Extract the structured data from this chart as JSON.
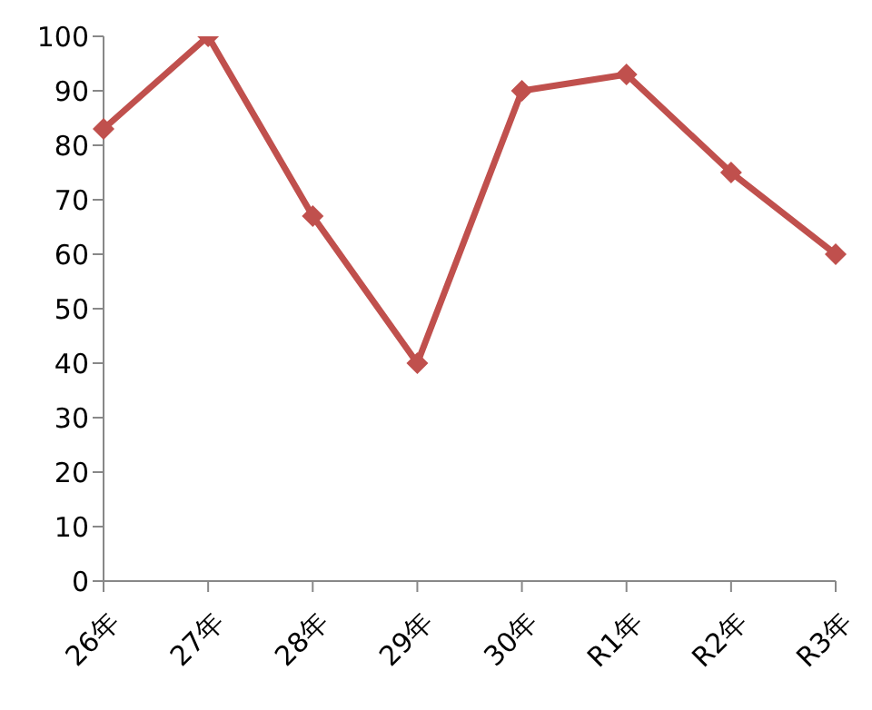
{
  "chart_data": {
    "type": "line",
    "categories": [
      "26年",
      "27年",
      "28年",
      "29年",
      "30年",
      "R1年",
      "R2年",
      "R3年"
    ],
    "series": [
      {
        "color": "#c0504d",
        "values": [
          83,
          100,
          67,
          40,
          90,
          93,
          75,
          60
        ]
      }
    ],
    "ylim": [
      0,
      100
    ],
    "yticks": [
      0,
      10,
      20,
      30,
      40,
      50,
      60,
      70,
      80,
      90,
      100
    ],
    "grid": false,
    "legend": false,
    "marker": "diamond",
    "line_style": "solid"
  }
}
